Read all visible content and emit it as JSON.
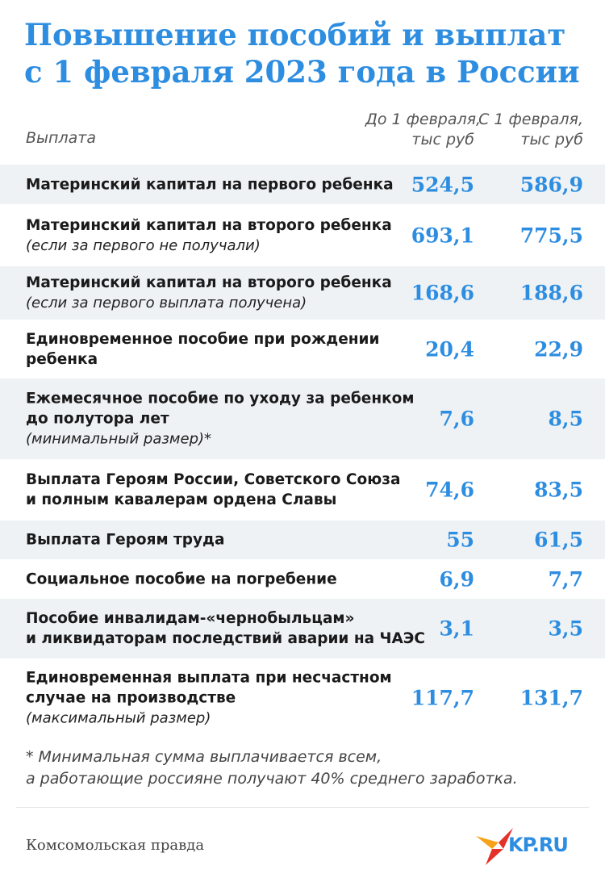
{
  "title": {
    "line1": "Повышение пособий и выплат",
    "line2": "с 1 февраля 2023 года в России"
  },
  "header": {
    "payment": "Выплата",
    "col1_line1": "До 1 февраля,",
    "col1_line2": "тыс руб",
    "col2_line1": "С 1 февраля,",
    "col2_line2": "тыс руб"
  },
  "rows": [
    {
      "lines": [
        "Материнский капитал на первого ребенка"
      ],
      "note": "",
      "before": "524,5",
      "after": "586,9"
    },
    {
      "lines": [
        "Материнский капитал на второго ребенка"
      ],
      "note": "(если за первого не получали)",
      "before": "693,1",
      "after": "775,5"
    },
    {
      "lines": [
        "Материнский капитал на второго ребенка"
      ],
      "note": "(если за первого выплата получена)",
      "before": "168,6",
      "after": "188,6"
    },
    {
      "lines": [
        "Единовременное пособие при рождении",
        "ребенка"
      ],
      "note": "",
      "before": "20,4",
      "after": "22,9"
    },
    {
      "lines": [
        "Ежемесячное пособие по уходу за ребенком",
        "до полутора лет"
      ],
      "note": "(минимальный размер)*",
      "before": "7,6",
      "after": "8,5"
    },
    {
      "lines": [
        "Выплата Героям России, Советского Союза",
        "и полным кавалерам ордена Славы"
      ],
      "note": "",
      "before": "74,6",
      "after": "83,5"
    },
    {
      "lines": [
        "Выплата Героям труда"
      ],
      "note": "",
      "before": "55",
      "after": "61,5"
    },
    {
      "lines": [
        "Социальное пособие на погребение"
      ],
      "note": "",
      "before": "6,9",
      "after": "7,7"
    },
    {
      "lines": [
        "Пособие инвалидам-«чернобыльцам»",
        "и ликвидаторам последствий аварии на ЧАЭС"
      ],
      "note": "",
      "before": "3,1",
      "after": "3,5"
    },
    {
      "lines": [
        "Единовременная выплата при несчастном",
        "случае на производстве"
      ],
      "note": "(максимальный размер)",
      "before": "117,7",
      "after": "131,7"
    }
  ],
  "footnote": {
    "line1": "* Минимальная сумма выплачивается всем,",
    "line2": "а работающие россияне получают 40% среднего заработка."
  },
  "source": "Комсомольская правда",
  "logo_text": "KP.RU",
  "colors": {
    "accent": "#2d8de0",
    "row_shade": "#eef2f5",
    "logo_red": "#e4322b",
    "logo_orange": "#f7a21b"
  }
}
